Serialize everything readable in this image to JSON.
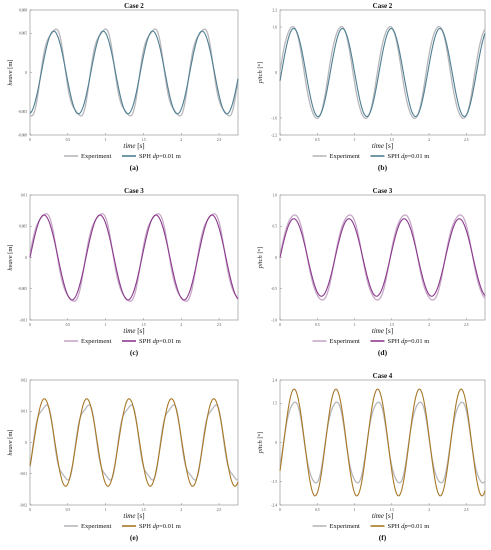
{
  "figure": {
    "legend_labels": {
      "experiment": "Experiment",
      "sph_prefix": "SPH ",
      "sph_var": "dp",
      "sph_suffix": "=0.01 m"
    },
    "xlabel_var": "time",
    "xlabel_unit": " [s]"
  },
  "chart_data": [
    {
      "panel": "(a)",
      "type": "line",
      "title": "Case 2",
      "ylabel_var": "heave",
      "ylabel_unit": " [m]",
      "xlim": [
        0,
        2.75
      ],
      "ylim": [
        -0.008,
        0.008
      ],
      "xticks": [
        0,
        0.5,
        1,
        1.5,
        2,
        2.5
      ],
      "xtick_labels": [
        "0",
        "0.5",
        "1",
        "1.5",
        "2",
        "2.5"
      ],
      "yticks": [
        -0.008,
        -0.005,
        0,
        0.005,
        0.008
      ],
      "ytick_labels": [
        "-0.008",
        "-0.005",
        "0",
        "0.005",
        "0.008"
      ],
      "series": [
        {
          "name": "Experiment",
          "color": "#b8b8bc",
          "amplitude": 0.0058,
          "period": 0.654,
          "phase": 0.15,
          "ripple": 0.0006,
          "offset": 0
        },
        {
          "name": "SPH dp=0.01 m",
          "color": "#4f7f92",
          "amplitude": 0.0053,
          "period": 0.654,
          "phase": 0.15,
          "ripple": 0,
          "offset": 0
        }
      ]
    },
    {
      "panel": "(b)",
      "type": "line",
      "title": "Case 2",
      "ylabel_var": "pitch",
      "ylabel_unit": " [°]",
      "xlim": [
        0,
        2.75
      ],
      "ylim": [
        -2.2,
        2.2
      ],
      "xticks": [
        0,
        0.5,
        1,
        1.5,
        2,
        2.5
      ],
      "xtick_labels": [
        "0",
        "0.5",
        "1",
        "1.5",
        "2",
        "2.5"
      ],
      "yticks": [
        -2.2,
        -1.6,
        0,
        1.6,
        2.2
      ],
      "ytick_labels": [
        "-2.2",
        "-1.6",
        "0",
        "1.6",
        "2.2"
      ],
      "series": [
        {
          "name": "Experiment",
          "color": "#b8b8bc",
          "amplitude": 1.65,
          "period": 0.654,
          "phase": 0.0,
          "ripple": 0.05,
          "offset": 0
        },
        {
          "name": "SPH dp=0.01 m",
          "color": "#4f7f92",
          "amplitude": 1.55,
          "period": 0.654,
          "phase": 0.02,
          "ripple": 0,
          "offset": 0
        }
      ]
    },
    {
      "panel": "(c)",
      "type": "line",
      "title": "Case 3",
      "ylabel_var": "heave",
      "ylabel_unit": " [m]",
      "xlim": [
        0,
        2.75
      ],
      "ylim": [
        -0.01,
        0.01
      ],
      "xticks": [
        0,
        0.5,
        1,
        1.5,
        2,
        2.5
      ],
      "xtick_labels": [
        "0",
        "0.5",
        "1",
        "1.5",
        "2",
        "2.5"
      ],
      "yticks": [
        -0.01,
        -0.005,
        0,
        0.005,
        0.01
      ],
      "ytick_labels": [
        "-0.01",
        "-0.005",
        "0",
        "0.005",
        "0.01"
      ],
      "series": [
        {
          "name": "Experiment",
          "color": "#c7a8c8",
          "amplitude": 0.0073,
          "period": 0.74,
          "phase": 0.0,
          "ripple": 0.0006,
          "offset": 0
        },
        {
          "name": "SPH dp=0.01 m",
          "color": "#8a3a8c",
          "amplitude": 0.0068,
          "period": 0.74,
          "phase": 0.0,
          "ripple": 0,
          "offset": 0
        }
      ]
    },
    {
      "panel": "(d)",
      "type": "line",
      "title": "Case 3",
      "ylabel_var": "pitch",
      "ylabel_unit": " [°]",
      "xlim": [
        0,
        2.75
      ],
      "ylim": [
        -1.0,
        1.0
      ],
      "xticks": [
        0,
        0.5,
        1,
        1.5,
        2,
        2.5
      ],
      "xtick_labels": [
        "0",
        "0.5",
        "1",
        "1.5",
        "2",
        "2.5"
      ],
      "yticks": [
        -1.0,
        -0.5,
        0,
        0.5,
        1.0
      ],
      "ytick_labels": [
        "-1.0",
        "-0.5",
        "0",
        "0.5",
        "1.0"
      ],
      "series": [
        {
          "name": "Experiment",
          "color": "#c7a8c8",
          "amplitude": 0.7,
          "period": 0.74,
          "phase": 0.0,
          "ripple": 0.03,
          "offset": 0
        },
        {
          "name": "SPH dp=0.01 m",
          "color": "#8a3a8c",
          "amplitude": 0.62,
          "period": 0.74,
          "phase": 0.0,
          "ripple": 0,
          "offset": 0
        }
      ]
    },
    {
      "panel": "(e)",
      "type": "line",
      "title": "",
      "ylabel_var": "heave",
      "ylabel_unit": " [m]",
      "xlim": [
        0,
        2.75
      ],
      "ylim": [
        -0.02,
        0.02
      ],
      "xticks": [
        0,
        0.5,
        1,
        1.5,
        2,
        2.5
      ],
      "xtick_labels": [
        "0",
        "0.5",
        "1",
        "1.5",
        "2",
        "2.5"
      ],
      "yticks": [
        -0.02,
        -0.01,
        0,
        0.01,
        0.02
      ],
      "ytick_labels": [
        "-0.02",
        "-0.01",
        "0",
        "0.01",
        "0.02"
      ],
      "series": [
        {
          "name": "Experiment",
          "color": "#b8b8bc",
          "amplitude": 0.0125,
          "period": 0.56,
          "phase": 0.05,
          "ripple": 0.0015,
          "offset": 0
        },
        {
          "name": "SPH dp=0.01 m",
          "color": "#a87828",
          "amplitude": 0.014,
          "period": 0.56,
          "phase": 0.05,
          "ripple": 0,
          "offset": 0
        }
      ]
    },
    {
      "panel": "(f)",
      "type": "line",
      "title": "Case 4",
      "ylabel_var": "pitch",
      "ylabel_unit": " [°]",
      "xlim": [
        0,
        2.75
      ],
      "ylim": [
        -2.4,
        2.4
      ],
      "xticks": [
        0,
        0.5,
        1,
        1.5,
        2,
        2.5
      ],
      "xtick_labels": [
        "0",
        "0.5",
        "1",
        "1.5",
        "2",
        "2.5"
      ],
      "yticks": [
        -2.4,
        -1.5,
        0,
        1.5,
        2.4
      ],
      "ytick_labels": [
        "-2.4",
        "-1.5",
        "0",
        "1.5",
        "2.4"
      ],
      "series": [
        {
          "name": "Experiment",
          "color": "#b8b8bc",
          "amplitude": 1.6,
          "period": 0.56,
          "phase": 0.05,
          "ripple": 0.08,
          "offset": 0
        },
        {
          "name": "SPH dp=0.01 m",
          "color": "#a87828",
          "amplitude": 2.05,
          "period": 0.56,
          "phase": 0.05,
          "ripple": 0,
          "offset": 0
        }
      ]
    }
  ]
}
